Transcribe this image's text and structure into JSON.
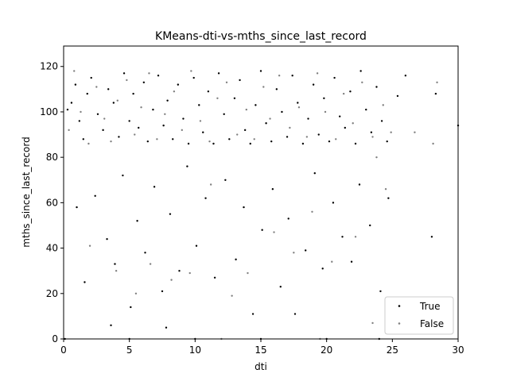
{
  "chart_data": {
    "type": "scatter",
    "title": "KMeans-dti-vs-mths_since_last_record",
    "xlabel": "dti",
    "ylabel": "mths_since_last_record",
    "xlim": [
      0,
      30
    ],
    "ylim": [
      0,
      129
    ],
    "xticks": [
      0,
      5,
      10,
      15,
      20,
      25,
      30
    ],
    "yticks": [
      0,
      20,
      40,
      60,
      80,
      100,
      120
    ],
    "grid": false,
    "legend": "lower-right",
    "series": [
      {
        "name": "True",
        "color": "#000000",
        "points": [
          [
            0.3,
            101
          ],
          [
            0.6,
            104
          ],
          [
            0.9,
            112
          ],
          [
            1.2,
            96
          ],
          [
            1.5,
            88
          ],
          [
            1.8,
            108
          ],
          [
            2.1,
            115
          ],
          [
            2.6,
            99
          ],
          [
            3.0,
            92
          ],
          [
            3.4,
            110
          ],
          [
            3.8,
            104
          ],
          [
            4.2,
            89
          ],
          [
            4.6,
            117
          ],
          [
            5.0,
            96
          ],
          [
            5.3,
            108
          ],
          [
            5.7,
            93
          ],
          [
            6.1,
            113
          ],
          [
            6.4,
            87
          ],
          [
            6.8,
            101
          ],
          [
            7.2,
            116
          ],
          [
            7.6,
            94
          ],
          [
            7.9,
            105
          ],
          [
            8.3,
            88
          ],
          [
            8.7,
            112
          ],
          [
            9.1,
            97
          ],
          [
            9.5,
            86
          ],
          [
            9.9,
            115
          ],
          [
            10.3,
            103
          ],
          [
            10.6,
            91
          ],
          [
            11.0,
            109
          ],
          [
            11.4,
            86
          ],
          [
            11.8,
            117
          ],
          [
            12.2,
            99
          ],
          [
            12.6,
            88
          ],
          [
            13.0,
            106
          ],
          [
            13.4,
            114
          ],
          [
            13.8,
            92
          ],
          [
            14.2,
            86
          ],
          [
            14.6,
            103
          ],
          [
            15.0,
            118
          ],
          [
            15.4,
            95
          ],
          [
            15.8,
            87
          ],
          [
            16.2,
            110
          ],
          [
            16.6,
            100
          ],
          [
            17.0,
            89
          ],
          [
            17.4,
            116
          ],
          [
            17.8,
            104
          ],
          [
            18.2,
            86
          ],
          [
            18.6,
            97
          ],
          [
            19.0,
            112
          ],
          [
            19.4,
            90
          ],
          [
            19.8,
            106
          ],
          [
            20.2,
            87
          ],
          [
            20.6,
            115
          ],
          [
            21.0,
            98
          ],
          [
            21.4,
            93
          ],
          [
            21.8,
            109
          ],
          [
            22.2,
            86
          ],
          [
            22.6,
            118
          ],
          [
            23.0,
            101
          ],
          [
            23.4,
            91
          ],
          [
            23.8,
            111
          ],
          [
            24.2,
            96
          ],
          [
            24.6,
            87
          ],
          [
            1.0,
            58
          ],
          [
            1.6,
            25
          ],
          [
            2.4,
            63
          ],
          [
            3.3,
            44
          ],
          [
            3.9,
            33
          ],
          [
            4.5,
            72
          ],
          [
            5.1,
            14
          ],
          [
            5.6,
            52
          ],
          [
            6.2,
            38
          ],
          [
            6.9,
            67
          ],
          [
            7.5,
            21
          ],
          [
            8.1,
            55
          ],
          [
            8.8,
            30
          ],
          [
            9.4,
            76
          ],
          [
            10.1,
            41
          ],
          [
            10.8,
            62
          ],
          [
            11.5,
            27
          ],
          [
            12.3,
            70
          ],
          [
            13.1,
            35
          ],
          [
            13.7,
            58
          ],
          [
            14.4,
            11
          ],
          [
            15.1,
            48
          ],
          [
            15.9,
            66
          ],
          [
            16.5,
            23
          ],
          [
            17.1,
            53
          ],
          [
            17.6,
            11
          ],
          [
            18.4,
            39
          ],
          [
            19.1,
            73
          ],
          [
            19.7,
            31
          ],
          [
            20.5,
            60
          ],
          [
            21.2,
            45
          ],
          [
            21.9,
            34
          ],
          [
            22.5,
            68
          ],
          [
            23.3,
            50
          ],
          [
            24.1,
            21
          ],
          [
            24.7,
            62
          ],
          [
            25.4,
            107
          ],
          [
            26.0,
            116
          ],
          [
            28.0,
            45
          ],
          [
            28.3,
            108
          ],
          [
            30.0,
            94
          ],
          [
            0.1,
            0
          ],
          [
            5.0,
            0
          ],
          [
            10.0,
            0
          ],
          [
            15.0,
            0
          ],
          [
            20.0,
            0
          ],
          [
            24.0,
            0
          ],
          [
            3.6,
            6
          ],
          [
            7.8,
            5
          ]
        ]
      },
      {
        "name": "False",
        "color": "#808080",
        "points": [
          [
            0.4,
            92
          ],
          [
            0.8,
            118
          ],
          [
            1.3,
            100
          ],
          [
            1.9,
            86
          ],
          [
            2.5,
            111
          ],
          [
            3.1,
            97
          ],
          [
            3.6,
            87
          ],
          [
            4.1,
            105
          ],
          [
            4.8,
            114
          ],
          [
            5.4,
            90
          ],
          [
            5.9,
            102
          ],
          [
            6.5,
            117
          ],
          [
            7.1,
            88
          ],
          [
            7.7,
            99
          ],
          [
            8.4,
            109
          ],
          [
            9.0,
            92
          ],
          [
            9.7,
            118
          ],
          [
            10.4,
            96
          ],
          [
            11.1,
            87
          ],
          [
            11.7,
            106
          ],
          [
            12.4,
            113
          ],
          [
            13.2,
            90
          ],
          [
            13.9,
            101
          ],
          [
            14.5,
            88
          ],
          [
            15.2,
            111
          ],
          [
            15.7,
            97
          ],
          [
            16.4,
            116
          ],
          [
            17.2,
            93
          ],
          [
            17.9,
            102
          ],
          [
            18.5,
            89
          ],
          [
            19.3,
            117
          ],
          [
            19.9,
            100
          ],
          [
            20.7,
            88
          ],
          [
            21.3,
            108
          ],
          [
            22.0,
            95
          ],
          [
            22.7,
            113
          ],
          [
            23.5,
            89
          ],
          [
            24.3,
            103
          ],
          [
            24.9,
            91
          ],
          [
            2.0,
            41
          ],
          [
            4.0,
            30
          ],
          [
            5.5,
            20
          ],
          [
            6.6,
            33
          ],
          [
            8.2,
            26
          ],
          [
            9.6,
            29
          ],
          [
            11.2,
            68
          ],
          [
            12.8,
            19
          ],
          [
            14.0,
            29
          ],
          [
            16.0,
            47
          ],
          [
            17.5,
            38
          ],
          [
            18.9,
            56
          ],
          [
            20.4,
            34
          ],
          [
            22.2,
            45
          ],
          [
            23.8,
            80
          ],
          [
            24.5,
            66
          ],
          [
            26.7,
            91
          ],
          [
            28.1,
            86
          ],
          [
            28.4,
            113
          ],
          [
            23.5,
            7
          ],
          [
            12.0,
            0
          ],
          [
            19.5,
            0
          ]
        ]
      }
    ]
  }
}
